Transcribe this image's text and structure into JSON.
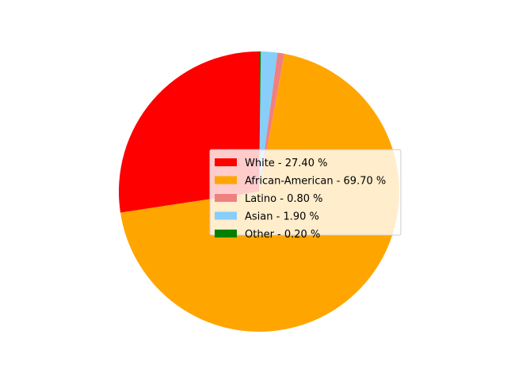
{
  "chart_data": {
    "type": "pie",
    "start_angle_deg": 90,
    "direction": "clockwise",
    "legend_location": "center-right",
    "slices": [
      {
        "label": "White",
        "value": 27.4,
        "color": "#ff0000",
        "legend": "White - 27.40 %"
      },
      {
        "label": "African-American",
        "value": 69.7,
        "color": "#ffa500",
        "legend": "African-American - 69.70 %"
      },
      {
        "label": "Latino",
        "value": 0.8,
        "color": "#f08080",
        "legend": "Latino - 0.80 %"
      },
      {
        "label": "Asian",
        "value": 1.9,
        "color": "#87cefa",
        "legend": "Asian - 1.90 %"
      },
      {
        "label": "Other",
        "value": 0.2,
        "color": "#008000",
        "legend": "Other - 0.20 %"
      }
    ]
  }
}
